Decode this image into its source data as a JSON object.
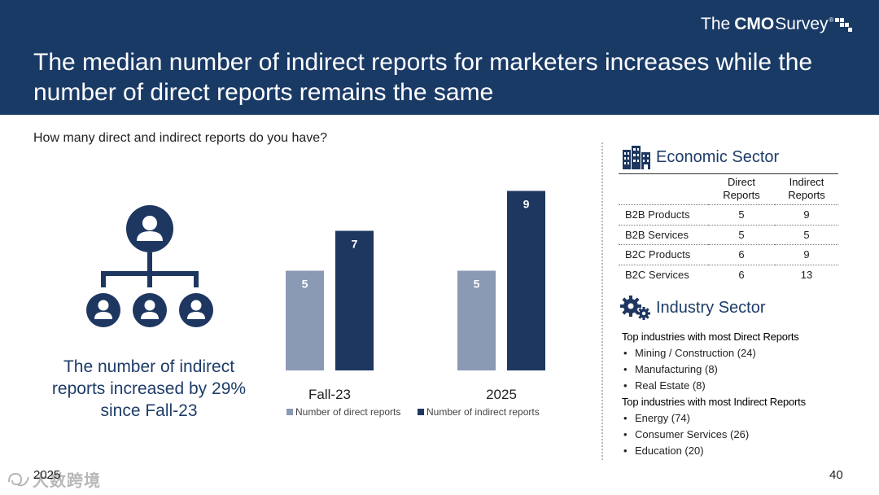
{
  "header": {
    "title": "The median number of indirect reports for marketers increases while the number of direct reports remains the same",
    "logo": {
      "part1": "The",
      "part2": "CMO",
      "part3": "Survey",
      "reg": "®"
    }
  },
  "question": "How many direct and indirect reports do you have?",
  "callout": "The number of indirect reports increased by 29% since Fall-23",
  "colors": {
    "header_bg": "#1a3a66",
    "direct": "#8b9ab4",
    "indirect": "#1e3760",
    "accent_text": "#1e3c68"
  },
  "chart_data": {
    "type": "bar",
    "categories": [
      "Fall-23",
      "2025"
    ],
    "series": [
      {
        "name": "Number of direct reports",
        "values": [
          5,
          5
        ]
      },
      {
        "name": "Number of indirect reports",
        "values": [
          7,
          9
        ]
      }
    ],
    "ylim": [
      0,
      10
    ],
    "title": "",
    "xlabel": "",
    "ylabel": "",
    "legend": "bottom",
    "grid": false
  },
  "economic_sector": {
    "title": "Economic Sector",
    "columns": [
      "",
      "Direct Reports",
      "Indirect Reports"
    ],
    "rows": [
      {
        "name": "B2B Products",
        "direct": "5",
        "indirect": "9"
      },
      {
        "name": "B2B Services",
        "direct": "5",
        "indirect": "5"
      },
      {
        "name": "B2C Products",
        "direct": "6",
        "indirect": "9"
      },
      {
        "name": "B2C Services",
        "direct": "6",
        "indirect": "13"
      }
    ]
  },
  "industry_sector": {
    "title": "Industry Sector",
    "direct_heading": "Top industries with most Direct Reports",
    "direct_items": [
      "Mining / Construction (24)",
      "Manufacturing (8)",
      "Real Estate (8)"
    ],
    "indirect_heading": "Top industries with most Indirect Reports",
    "indirect_items": [
      "Energy (74)",
      "Consumer Services (26)",
      "Education (20)"
    ]
  },
  "footer": {
    "year": "2025",
    "page": "40"
  },
  "watermark": "大数跨境"
}
